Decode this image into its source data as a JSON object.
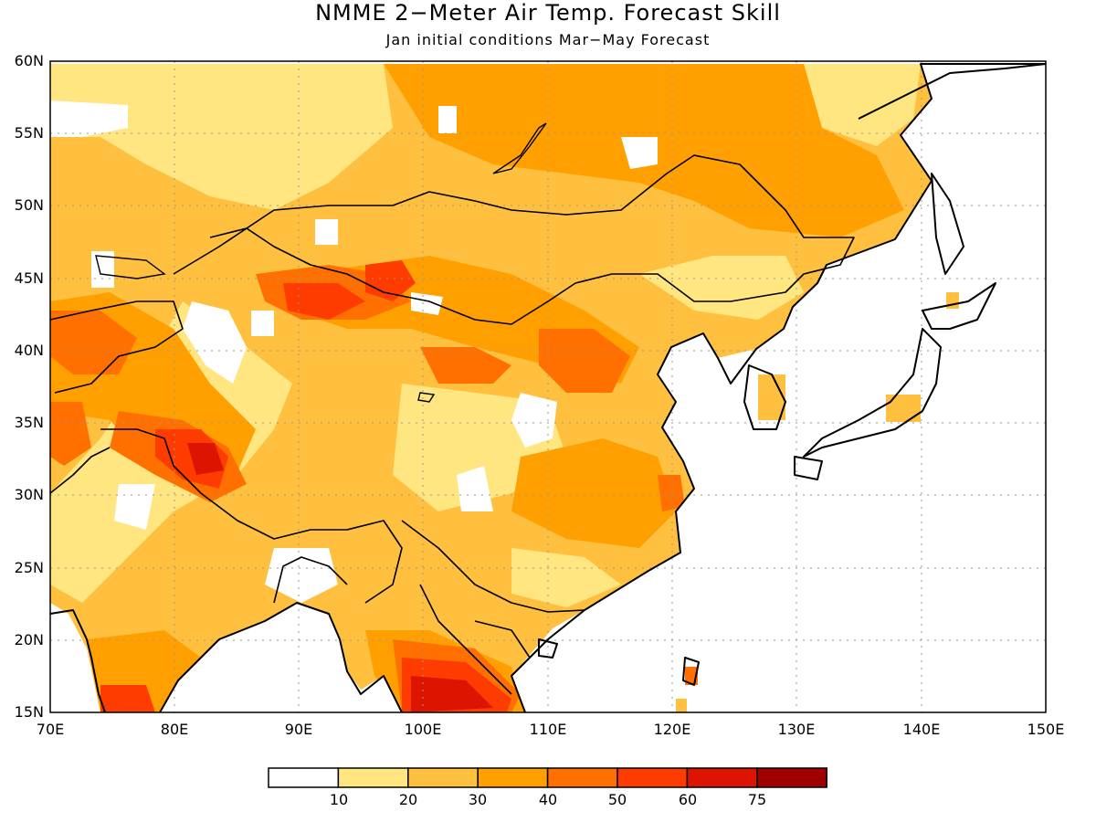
{
  "title": "NMME 2−Meter Air Temp. Forecast Skill",
  "subtitle": "Jan initial conditions  Mar−May Forecast",
  "axes": {
    "lat_labels": [
      "60N",
      "55N",
      "50N",
      "45N",
      "40N",
      "35N",
      "30N",
      "25N",
      "20N",
      "15N"
    ],
    "lon_labels": [
      "70E",
      "80E",
      "90E",
      "100E",
      "110E",
      "120E",
      "130E",
      "140E",
      "150E"
    ]
  },
  "colorbar": {
    "colors": [
      "#ffffff",
      "#ffe680",
      "#ffc040",
      "#ffa000",
      "#ff7000",
      "#ff3c00",
      "#dc1400",
      "#a00000"
    ],
    "tick_labels": [
      "10",
      "20",
      "30",
      "40",
      "50",
      "60",
      "75"
    ]
  },
  "chart_data": {
    "type": "heatmap",
    "title": "NMME 2−Meter Air Temp. Forecast Skill",
    "subtitle": "Jan initial conditions  Mar−May Forecast",
    "x_range": [
      70,
      150
    ],
    "y_range": [
      15,
      60
    ],
    "levels": [
      10,
      20,
      30,
      40,
      50,
      60,
      75
    ],
    "grid": true
  }
}
